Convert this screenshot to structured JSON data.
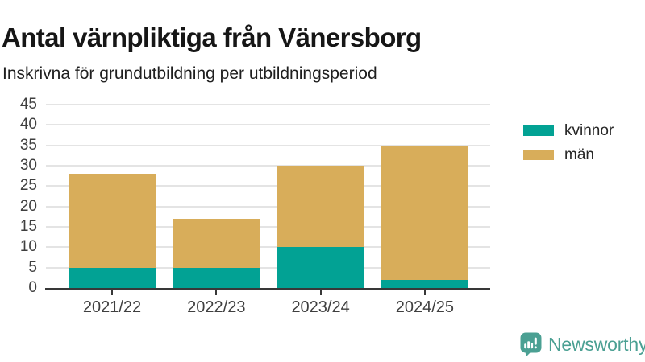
{
  "chart_data": {
    "type": "bar",
    "stacked": true,
    "title": "Antal värnpliktiga från Vänersborg",
    "subtitle": "Inskrivna för grundutbildning per utbildningsperiod",
    "categories": [
      "2021/22",
      "2022/23",
      "2023/24",
      "2024/25"
    ],
    "series": [
      {
        "name": "kvinnor",
        "color": "#02A294",
        "values": [
          5,
          5,
          10,
          2
        ]
      },
      {
        "name": "män",
        "color": "#D8AD5A",
        "values": [
          23,
          12,
          20,
          33
        ]
      }
    ],
    "stack_totals": [
      28,
      17,
      30,
      35
    ],
    "ylim": [
      0,
      45
    ],
    "yticks": [
      0,
      5,
      10,
      15,
      20,
      25,
      30,
      35,
      40,
      45
    ],
    "grid": true,
    "legend_position": "right"
  },
  "colors": {
    "title_text": "#161616",
    "subtitle_text": "#1F1F1F",
    "axis_label": "#3F3F3F",
    "axis_line": "#383838",
    "gridline": "#E4E4E4",
    "legend_text": "#262626",
    "brand": "#4BA093"
  },
  "footer": {
    "brand_label": "Newsworthy"
  }
}
